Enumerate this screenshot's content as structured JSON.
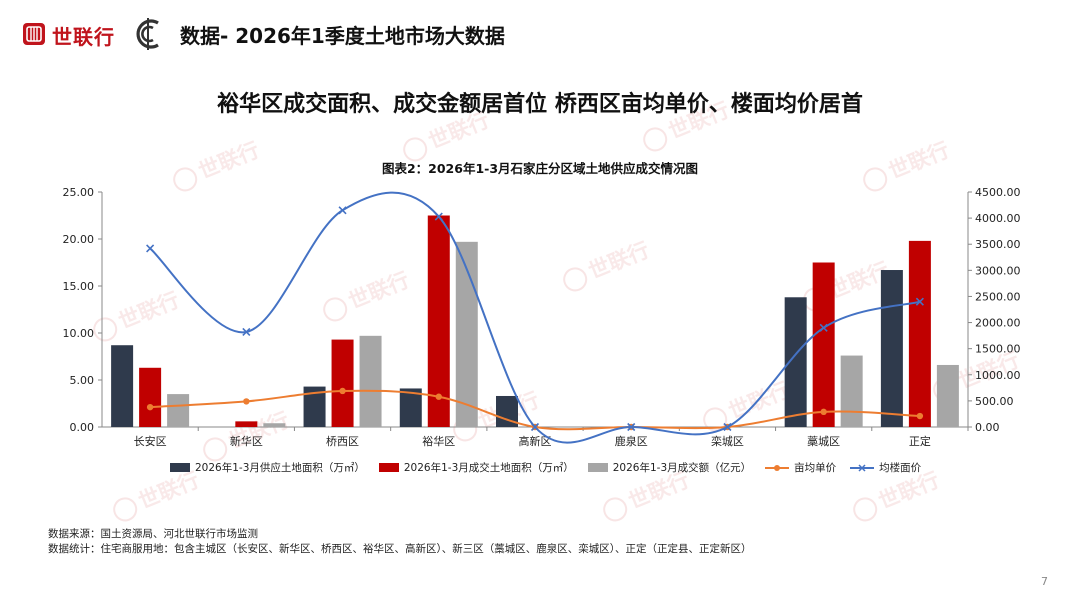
{
  "header": {
    "brand": "世联行",
    "title": "数据- 2026年1季度土地市场大数据",
    "brand_color": "#c0141c"
  },
  "headline": "裕华区成交面积、成交金额居首位 桥西区亩均单价、楼面均价居首",
  "watermark": "世联行",
  "chart_data": {
    "type": "bar",
    "title": "图表2：2026年1-3月石家庄分区域土地供应成交情况图",
    "categories": [
      "长安区",
      "新华区",
      "桥西区",
      "裕华区",
      "高新区",
      "鹿泉区",
      "栾城区",
      "藁城区",
      "正定"
    ],
    "y_left": {
      "ylim": [
        0,
        25
      ],
      "ticks": [
        "0.00",
        "5.00",
        "10.00",
        "15.00",
        "20.00",
        "25.00"
      ]
    },
    "y_right": {
      "ylim": [
        0,
        4500
      ],
      "ticks": [
        "0.00",
        "500.00",
        "1000.00",
        "1500.00",
        "2000.00",
        "2500.00",
        "3000.00",
        "3500.00",
        "4000.00",
        "4500.00"
      ]
    },
    "series": [
      {
        "name": "2026年1-3月供应土地面积（万㎡）",
        "type": "bar",
        "axis": "left",
        "color": "#2f3a4c",
        "values": [
          8.7,
          0,
          4.3,
          4.1,
          3.3,
          0,
          0,
          13.8,
          16.7
        ]
      },
      {
        "name": "2026年1-3月成交土地面积（万㎡）",
        "type": "bar",
        "axis": "left",
        "color": "#c00000",
        "values": [
          6.3,
          0.6,
          9.3,
          22.5,
          0,
          0,
          0,
          17.5,
          19.8
        ]
      },
      {
        "name": "2026年1-3月成交额（亿元）",
        "type": "bar",
        "axis": "left",
        "color": "#a6a6a6",
        "values": [
          3.5,
          0.4,
          9.7,
          19.7,
          0,
          0,
          0,
          7.6,
          6.6
        ]
      },
      {
        "name": "亩均单价",
        "type": "line",
        "axis": "right",
        "color": "#ed7d31",
        "marker": "circle",
        "values": [
          380,
          490,
          690,
          580,
          0,
          0,
          0,
          290,
          210
        ]
      },
      {
        "name": "均楼面价",
        "type": "line",
        "axis": "right",
        "color": "#4472c4",
        "marker": "x",
        "values": [
          3420,
          1820,
          4150,
          4030,
          0,
          0,
          0,
          1900,
          2400
        ]
      }
    ],
    "grid": false,
    "legend_position": "bottom"
  },
  "notes": {
    "source": "数据来源：国土资源局、河北世联行市场监测",
    "stats": "数据统计：住宅商服用地：包含主城区（长安区、新华区、桥西区、裕华区、高新区）、新三区（藁城区、鹿泉区、栾城区）、正定（正定县、正定新区）"
  },
  "page_number": "7"
}
